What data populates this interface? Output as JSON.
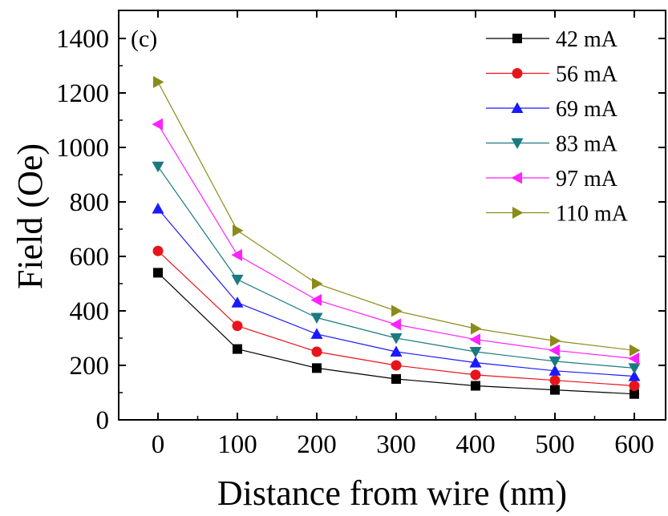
{
  "chart_data": {
    "type": "line",
    "panel_label": "(c)",
    "xlabel": "Distance from wire (nm)",
    "ylabel": "Field (Oe)",
    "xlim": [
      -50,
      640
    ],
    "ylim": [
      0,
      1400
    ],
    "xticks": [
      0,
      100,
      200,
      300,
      400,
      500,
      600
    ],
    "yticks": [
      0,
      200,
      400,
      600,
      800,
      1000,
      1200,
      1400
    ],
    "x": [
      0,
      100,
      200,
      300,
      400,
      500,
      600
    ],
    "legend_position": "top-right",
    "grid": false,
    "series": [
      {
        "name": "42 mA",
        "marker": "square",
        "color": "#000000",
        "values": [
          540,
          260,
          190,
          150,
          125,
          110,
          95
        ]
      },
      {
        "name": "56 mA",
        "marker": "circle",
        "color": "#e8141b",
        "values": [
          620,
          345,
          250,
          200,
          165,
          145,
          125
        ]
      },
      {
        "name": "69 mA",
        "marker": "triangle-up",
        "color": "#1a1aff",
        "values": [
          775,
          430,
          315,
          250,
          210,
          180,
          160
        ]
      },
      {
        "name": "83 mA",
        "marker": "triangle-down",
        "color": "#1a7a80",
        "values": [
          930,
          515,
          375,
          300,
          250,
          215,
          190
        ]
      },
      {
        "name": "97 mA",
        "marker": "triangle-left",
        "color": "#ff22ff",
        "values": [
          1085,
          605,
          440,
          350,
          295,
          255,
          225
        ]
      },
      {
        "name": "110 mA",
        "marker": "triangle-right",
        "color": "#8b8b18",
        "values": [
          1240,
          695,
          500,
          400,
          335,
          290,
          255
        ]
      }
    ]
  }
}
